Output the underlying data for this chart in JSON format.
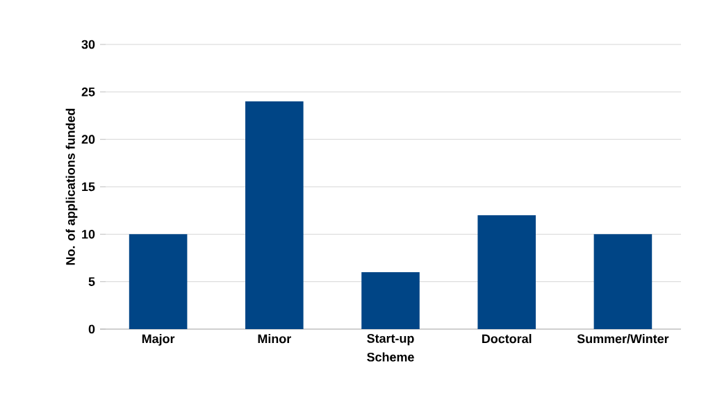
{
  "chart_data": {
    "type": "bar",
    "xlabel": "Scheme",
    "ylabel": "No. of applications funded",
    "categories": [
      "Major",
      "Minor",
      "Start-up",
      "Doctoral",
      "Summer/Winter"
    ],
    "values": [
      10,
      24,
      6,
      12,
      10
    ],
    "color": "#004586",
    "ylim": [
      0,
      30
    ],
    "yticks": [
      0,
      5,
      10,
      15,
      20,
      25,
      30
    ],
    "grid": "y"
  }
}
